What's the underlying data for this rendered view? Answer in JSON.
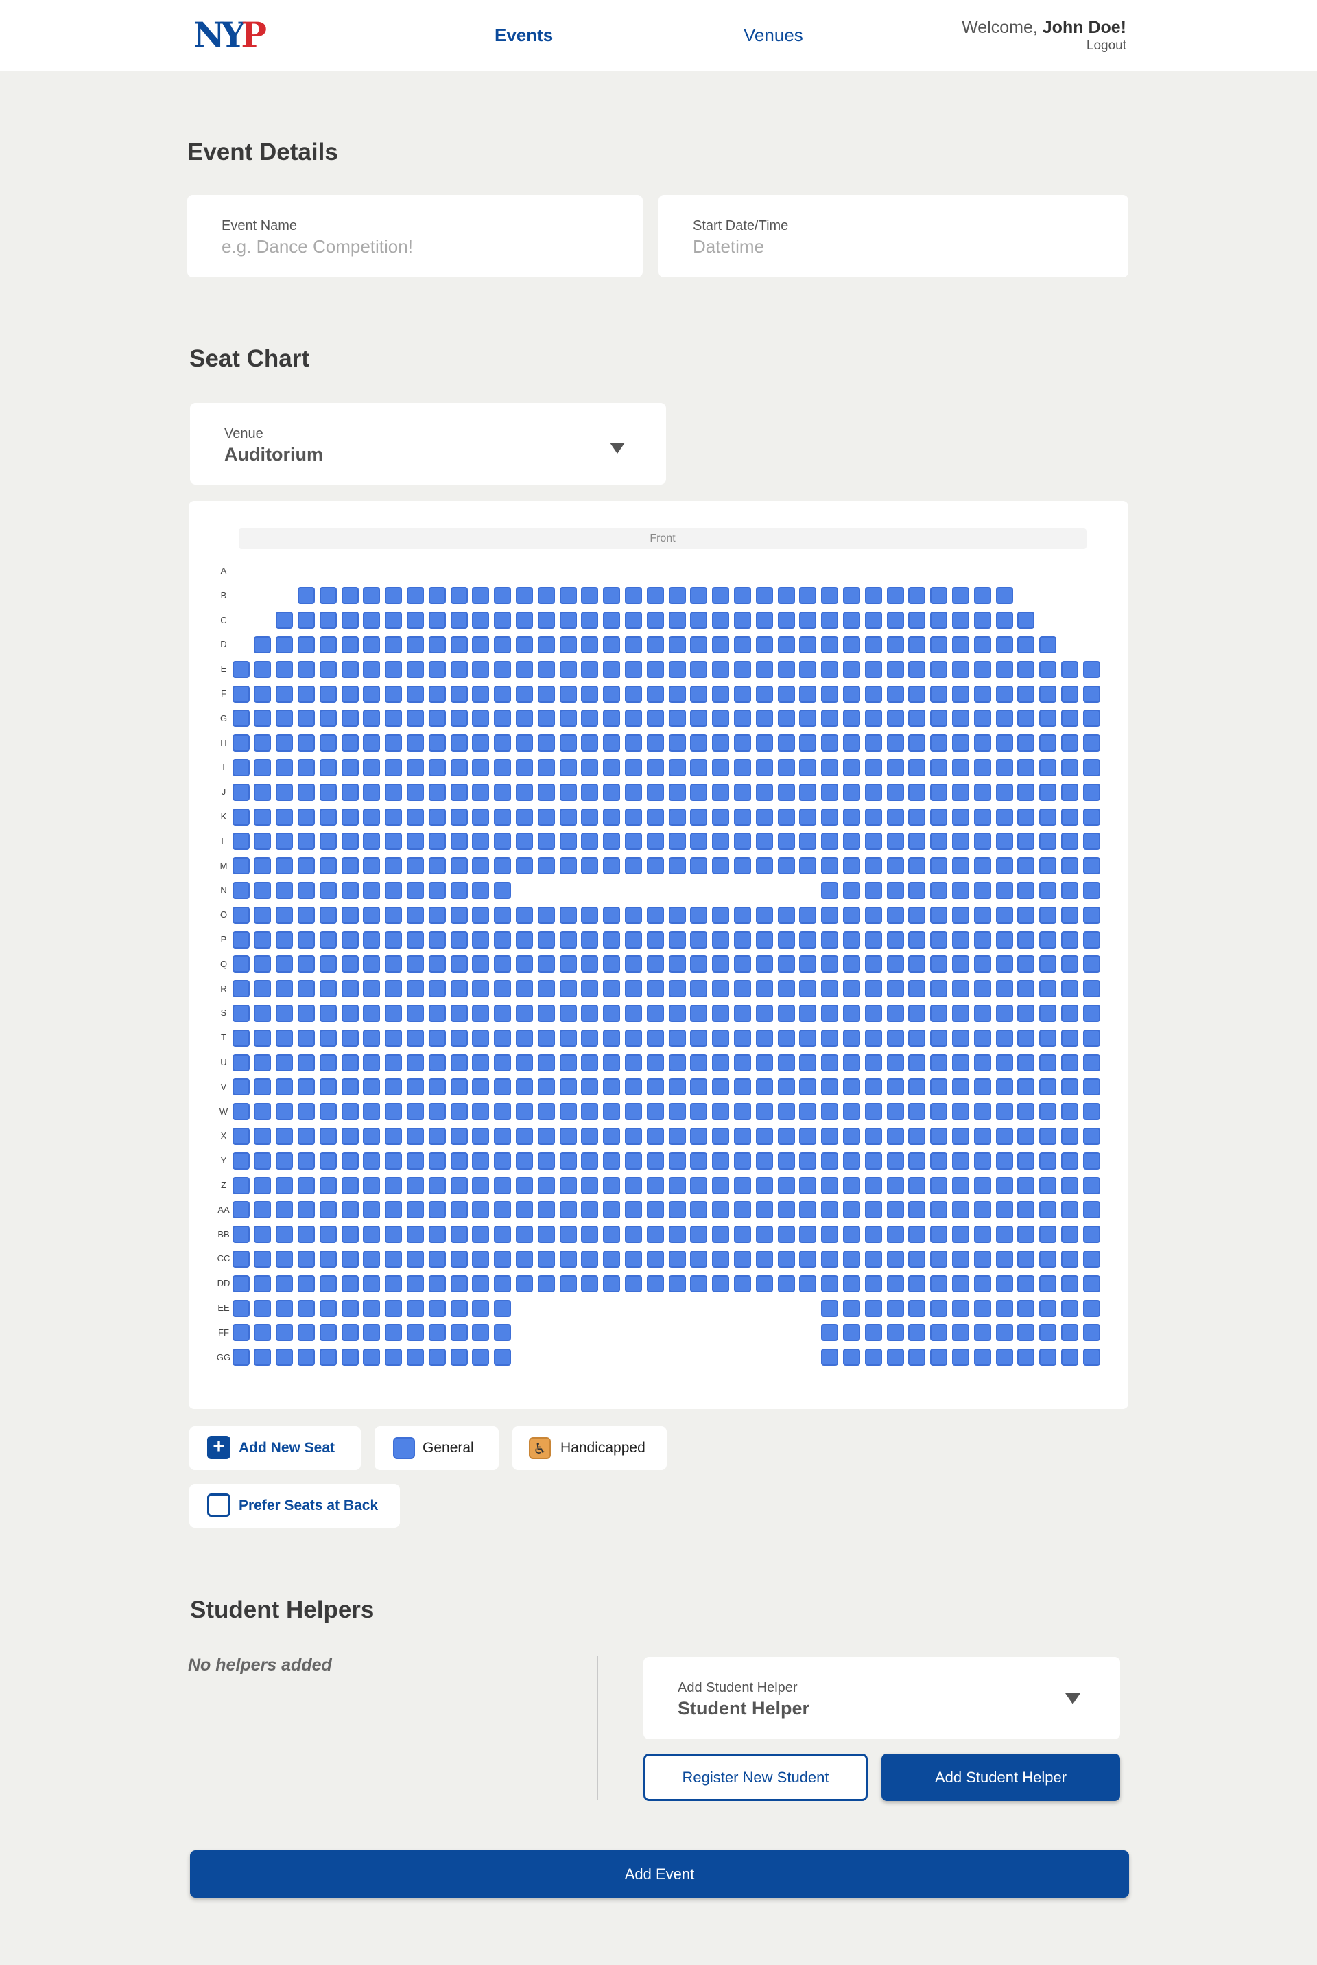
{
  "nav": {
    "logo": {
      "n": "N",
      "y": "Y",
      "p": "P"
    },
    "events_label": "Events",
    "venues_label": "Venues",
    "welcome_prefix": "Welcome, ",
    "user_name": "John Doe!",
    "logout_label": "Logout"
  },
  "event_details": {
    "title": "Event Details",
    "event_name": {
      "label": "Event Name",
      "value": "",
      "placeholder": "e.g. Dance Competition!"
    },
    "start_datetime": {
      "label": "Start Date/Time",
      "value": "",
      "placeholder": "Datetime"
    }
  },
  "seat_chart": {
    "title": "Seat Chart",
    "venue": {
      "label": "Venue",
      "value": "Auditorium"
    },
    "front_label": "Front",
    "rows": [
      {
        "label": "A",
        "seats": []
      },
      {
        "label": "B",
        "seats": [
          [
            3,
            35
          ]
        ]
      },
      {
        "label": "C",
        "seats": [
          [
            2,
            36
          ]
        ]
      },
      {
        "label": "D",
        "seats": [
          [
            1,
            37
          ]
        ]
      },
      {
        "label": "E",
        "seats": [
          [
            0,
            39
          ]
        ]
      },
      {
        "label": "F",
        "seats": [
          [
            0,
            39
          ]
        ]
      },
      {
        "label": "G",
        "seats": [
          [
            0,
            39
          ]
        ]
      },
      {
        "label": "H",
        "seats": [
          [
            0,
            39
          ]
        ]
      },
      {
        "label": "I",
        "seats": [
          [
            0,
            39
          ]
        ]
      },
      {
        "label": "J",
        "seats": [
          [
            0,
            39
          ]
        ]
      },
      {
        "label": "K",
        "seats": [
          [
            0,
            39
          ]
        ]
      },
      {
        "label": "L",
        "seats": [
          [
            0,
            39
          ]
        ]
      },
      {
        "label": "M",
        "seats": [
          [
            0,
            39
          ]
        ]
      },
      {
        "label": "N",
        "seats": [
          [
            0,
            12
          ],
          [
            27,
            39
          ]
        ]
      },
      {
        "label": "O",
        "seats": [
          [
            0,
            39
          ]
        ]
      },
      {
        "label": "P",
        "seats": [
          [
            0,
            39
          ]
        ]
      },
      {
        "label": "Q",
        "seats": [
          [
            0,
            39
          ]
        ]
      },
      {
        "label": "R",
        "seats": [
          [
            0,
            39
          ]
        ]
      },
      {
        "label": "S",
        "seats": [
          [
            0,
            39
          ]
        ]
      },
      {
        "label": "T",
        "seats": [
          [
            0,
            39
          ]
        ]
      },
      {
        "label": "U",
        "seats": [
          [
            0,
            39
          ]
        ]
      },
      {
        "label": "V",
        "seats": [
          [
            0,
            39
          ]
        ]
      },
      {
        "label": "W",
        "seats": [
          [
            0,
            39
          ]
        ]
      },
      {
        "label": "X",
        "seats": [
          [
            0,
            39
          ]
        ]
      },
      {
        "label": "Y",
        "seats": [
          [
            0,
            39
          ]
        ]
      },
      {
        "label": "Z",
        "seats": [
          [
            0,
            39
          ]
        ]
      },
      {
        "label": "AA",
        "seats": [
          [
            0,
            39
          ]
        ]
      },
      {
        "label": "BB",
        "seats": [
          [
            0,
            39
          ]
        ]
      },
      {
        "label": "CC",
        "seats": [
          [
            0,
            39
          ]
        ]
      },
      {
        "label": "DD",
        "seats": [
          [
            0,
            39
          ]
        ]
      },
      {
        "label": "EE",
        "seats": [
          [
            0,
            12
          ],
          [
            27,
            39
          ]
        ]
      },
      {
        "label": "FF",
        "seats": [
          [
            0,
            12
          ],
          [
            27,
            39
          ]
        ]
      },
      {
        "label": "GG",
        "seats": [
          [
            0,
            12
          ],
          [
            27,
            39
          ]
        ]
      }
    ],
    "colors": {
      "general": "#4f82e6",
      "handicapped": "#e8a24f",
      "accent": "#0b4a9b"
    },
    "legend": {
      "add_new_seat": "Add New Seat",
      "general": "General",
      "handicapped": "Handicapped",
      "handicapped_icon": "♿",
      "prefer_back": "Prefer Seats at Back"
    }
  },
  "student_helpers": {
    "title": "Student Helpers",
    "empty_text": "No helpers added",
    "add_helper": {
      "label": "Add Student Helper",
      "value": "Student Helper"
    },
    "register_label": "Register New Student",
    "add_helper_button": "Add Student Helper"
  },
  "submit_label": "Add Event"
}
